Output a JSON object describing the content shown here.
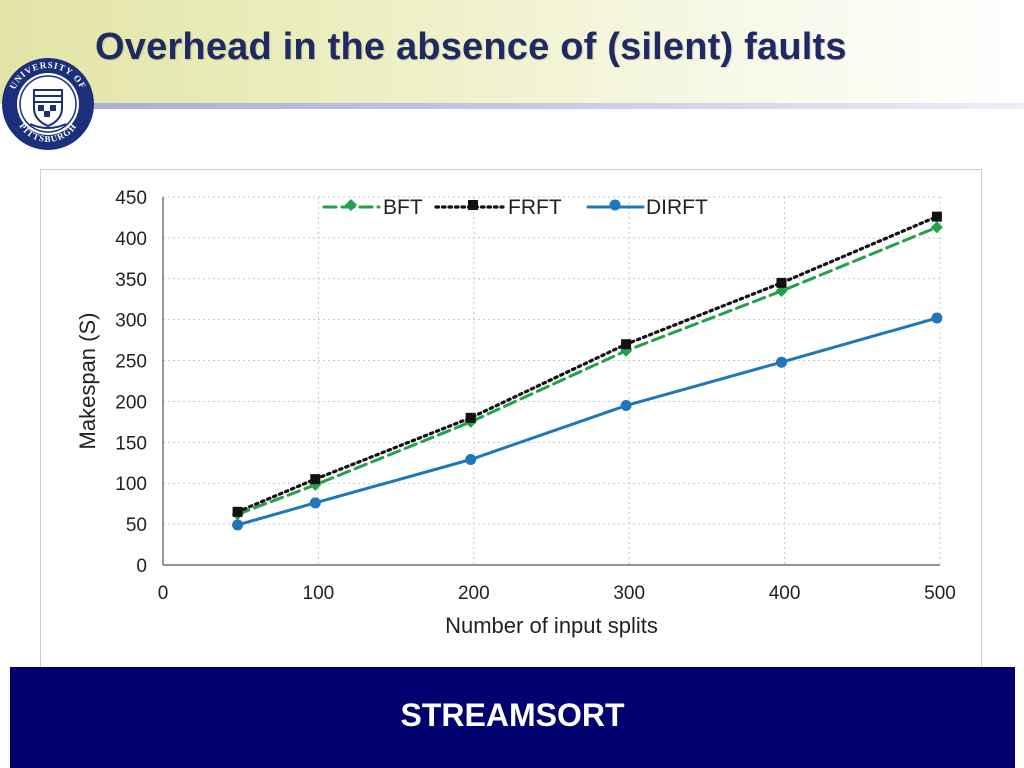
{
  "slide": {
    "title": "Overhead in the absence of (silent) faults",
    "footer_label": "STREAMSORT"
  },
  "logo": {
    "name": "university-of-pittsburgh-seal",
    "text_top": "UNIVERSITY OF",
    "text_bottom": "PITTSBURGH",
    "colors": {
      "ring": "#1c2f7a",
      "inner": "#ffffff",
      "accent": "#1c2f7a"
    }
  },
  "colors": {
    "title": "#1f2a63",
    "footer_bg": "#00006e",
    "footer_text": "#ffffff"
  },
  "chart_data": {
    "type": "line",
    "xlabel": "Number of input splits",
    "ylabel": "Makespan (S)",
    "xlim": [
      0,
      500
    ],
    "ylim": [
      0,
      450
    ],
    "x_ticks": [
      0,
      100,
      200,
      300,
      400,
      500
    ],
    "y_ticks": [
      0,
      50,
      100,
      150,
      200,
      250,
      300,
      350,
      400,
      450
    ],
    "grid": "dotted",
    "legend_position": "top",
    "series": [
      {
        "name": "BFT",
        "color": "#22a04a",
        "style": "dashed",
        "marker": "diamond",
        "x": [
          48,
          98,
          198,
          298,
          398,
          498
        ],
        "y": [
          62,
          98,
          175,
          262,
          335,
          413
        ]
      },
      {
        "name": "FRFT",
        "color": "#111111",
        "style": "dotted",
        "marker": "square",
        "x": [
          48,
          98,
          198,
          298,
          398,
          498
        ],
        "y": [
          65,
          105,
          180,
          270,
          345,
          426
        ]
      },
      {
        "name": "DIRFT",
        "color": "#1f77b8",
        "style": "solid",
        "marker": "circle",
        "x": [
          48,
          98,
          198,
          298,
          398,
          498
        ],
        "y": [
          49,
          76,
          129,
          195,
          248,
          302
        ]
      }
    ]
  }
}
